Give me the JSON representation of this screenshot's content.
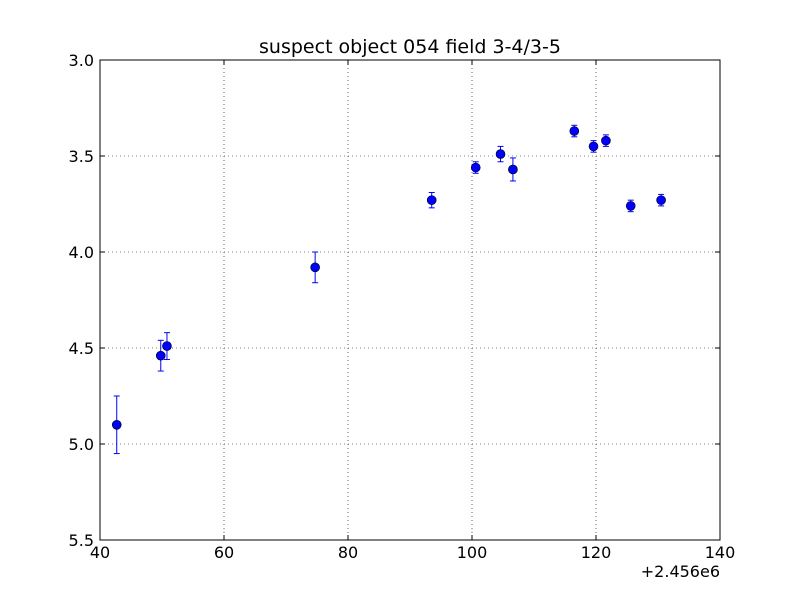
{
  "chart_data": {
    "type": "scatter",
    "title": "suspect object 054 field 3-4/3-5",
    "xlabel": "",
    "ylabel": "",
    "x_offset_label": "+2.456e6",
    "xlim": [
      40,
      140
    ],
    "ylim": [
      5.5,
      3.0
    ],
    "y_inverted": true,
    "grid": true,
    "xticks": [
      "40",
      "60",
      "80",
      "100",
      "120",
      "140"
    ],
    "yticks": [
      "3.0",
      "3.5",
      "4.0",
      "4.5",
      "5.0",
      "5.5"
    ],
    "marker_color": "#0000ff",
    "series": [
      {
        "points": [
          {
            "x": 2456042.7,
            "y": 4.9,
            "err": 0.15
          },
          {
            "x": 2456049.8,
            "y": 4.54,
            "err": 0.08
          },
          {
            "x": 2456050.8,
            "y": 4.49,
            "err": 0.07
          },
          {
            "x": 2456074.7,
            "y": 4.08,
            "err": 0.08
          },
          {
            "x": 2456093.5,
            "y": 3.73,
            "err": 0.04
          },
          {
            "x": 2456100.6,
            "y": 3.56,
            "err": 0.03
          },
          {
            "x": 2456104.6,
            "y": 3.49,
            "err": 0.04
          },
          {
            "x": 2456106.6,
            "y": 3.57,
            "err": 0.06
          },
          {
            "x": 2456116.5,
            "y": 3.37,
            "err": 0.03
          },
          {
            "x": 2456119.6,
            "y": 3.45,
            "err": 0.03
          },
          {
            "x": 2456121.6,
            "y": 3.42,
            "err": 0.03
          },
          {
            "x": 2456125.6,
            "y": 3.76,
            "err": 0.03
          },
          {
            "x": 2456130.5,
            "y": 3.73,
            "err": 0.03
          }
        ]
      }
    ]
  }
}
